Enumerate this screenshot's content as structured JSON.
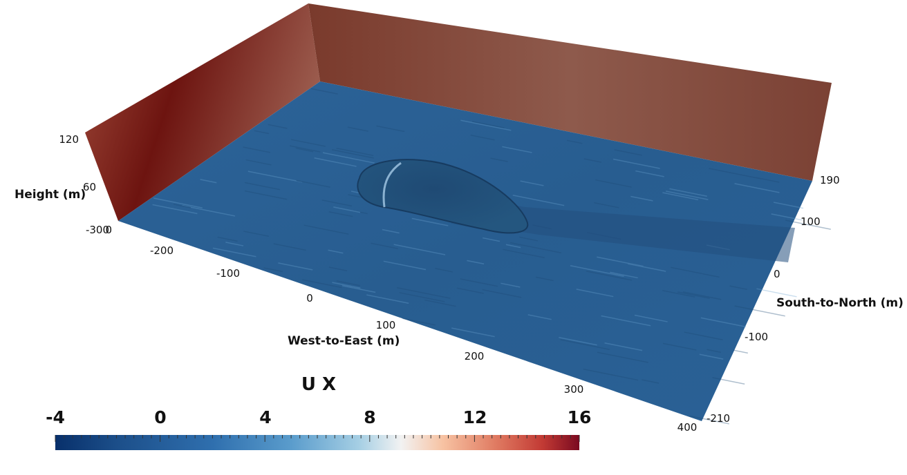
{
  "axes": {
    "x_title": "West-to-East (m)",
    "y_title": "South-to-North (m)",
    "z_title": "Height (m)",
    "x_ticks": [
      "-300",
      "-200",
      "-100",
      "0",
      "100",
      "200",
      "300",
      "400"
    ],
    "y_ticks": [
      "190",
      "100",
      "0",
      "-100",
      "-210"
    ],
    "z_ticks": [
      "120",
      "60",
      "0"
    ]
  },
  "colorbar": {
    "title": "U X",
    "ticks": [
      "-4",
      "0",
      "4",
      "8",
      "12",
      "16"
    ],
    "range": [
      -4,
      16
    ],
    "colormap": [
      "#08306b",
      "#2166ac",
      "#4393c3",
      "#92c5de",
      "#f7f7f7",
      "#f4a582",
      "#d6604d",
      "#b2182b",
      "#67001f"
    ]
  },
  "colors": {
    "floor": "#2a5f93",
    "floor_dark": "#1f4c79",
    "wall_west": "#8a2b1d",
    "wall_north": "#7a4a3c"
  }
}
